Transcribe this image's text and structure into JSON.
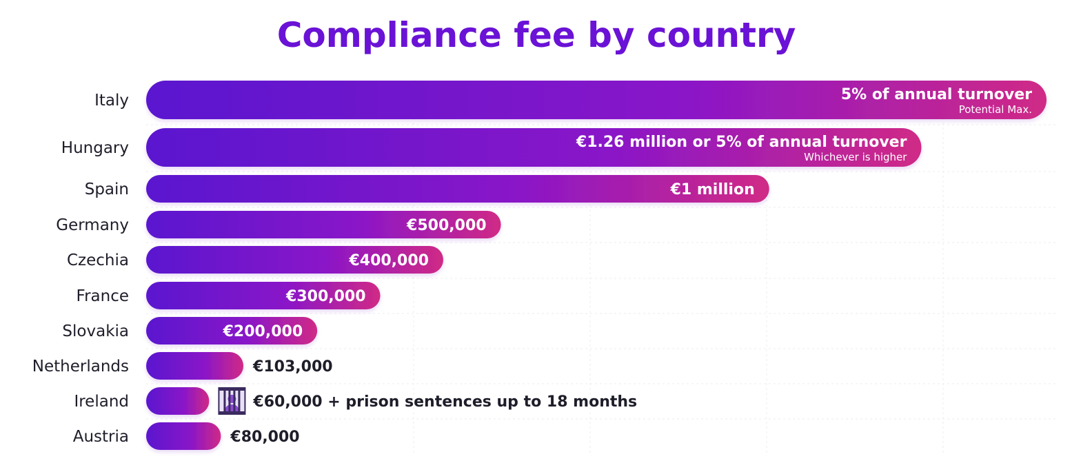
{
  "chart_data": {
    "type": "bar",
    "orientation": "horizontal",
    "title": "Compliance fee by country",
    "xlabel": "",
    "ylabel": "",
    "grid": true,
    "legend": "none",
    "colors": {
      "bar_start": "#5a17cf",
      "bar_mid": "#8a16c8",
      "bar_end": "#d02a86",
      "title": "#6a12d6",
      "text": "#1e1e2a"
    },
    "categories": [
      "Italy",
      "Hungary",
      "Spain",
      "Germany",
      "Czechia",
      "France",
      "Slovakia",
      "Netherlands",
      "Ireland",
      "Austria"
    ],
    "values": [
      1000,
      861,
      692,
      394,
      330,
      260,
      190,
      108,
      70,
      83
    ],
    "labels": [
      {
        "text": "5% of annual turnover",
        "sub": "Potential Max.",
        "inside": true
      },
      {
        "text": "€1.26 million or 5% of annual turnover",
        "sub": "Whichever is higher",
        "inside": true
      },
      {
        "text": "€1 million",
        "sub": "",
        "inside": true
      },
      {
        "text": "€500,000",
        "sub": "",
        "inside": true
      },
      {
        "text": "€400,000",
        "sub": "",
        "inside": true
      },
      {
        "text": "€300,000",
        "sub": "",
        "inside": true
      },
      {
        "text": "€200,000",
        "sub": "",
        "inside": true
      },
      {
        "text": "€103,000",
        "sub": "",
        "inside": false
      },
      {
        "text": "€60,000 + prison sentences up to 18 months",
        "sub": "",
        "inside": false,
        "icon": "prison-icon"
      },
      {
        "text": "€80,000",
        "sub": "",
        "inside": false
      }
    ],
    "xlim": [
      0,
      1000
    ]
  }
}
